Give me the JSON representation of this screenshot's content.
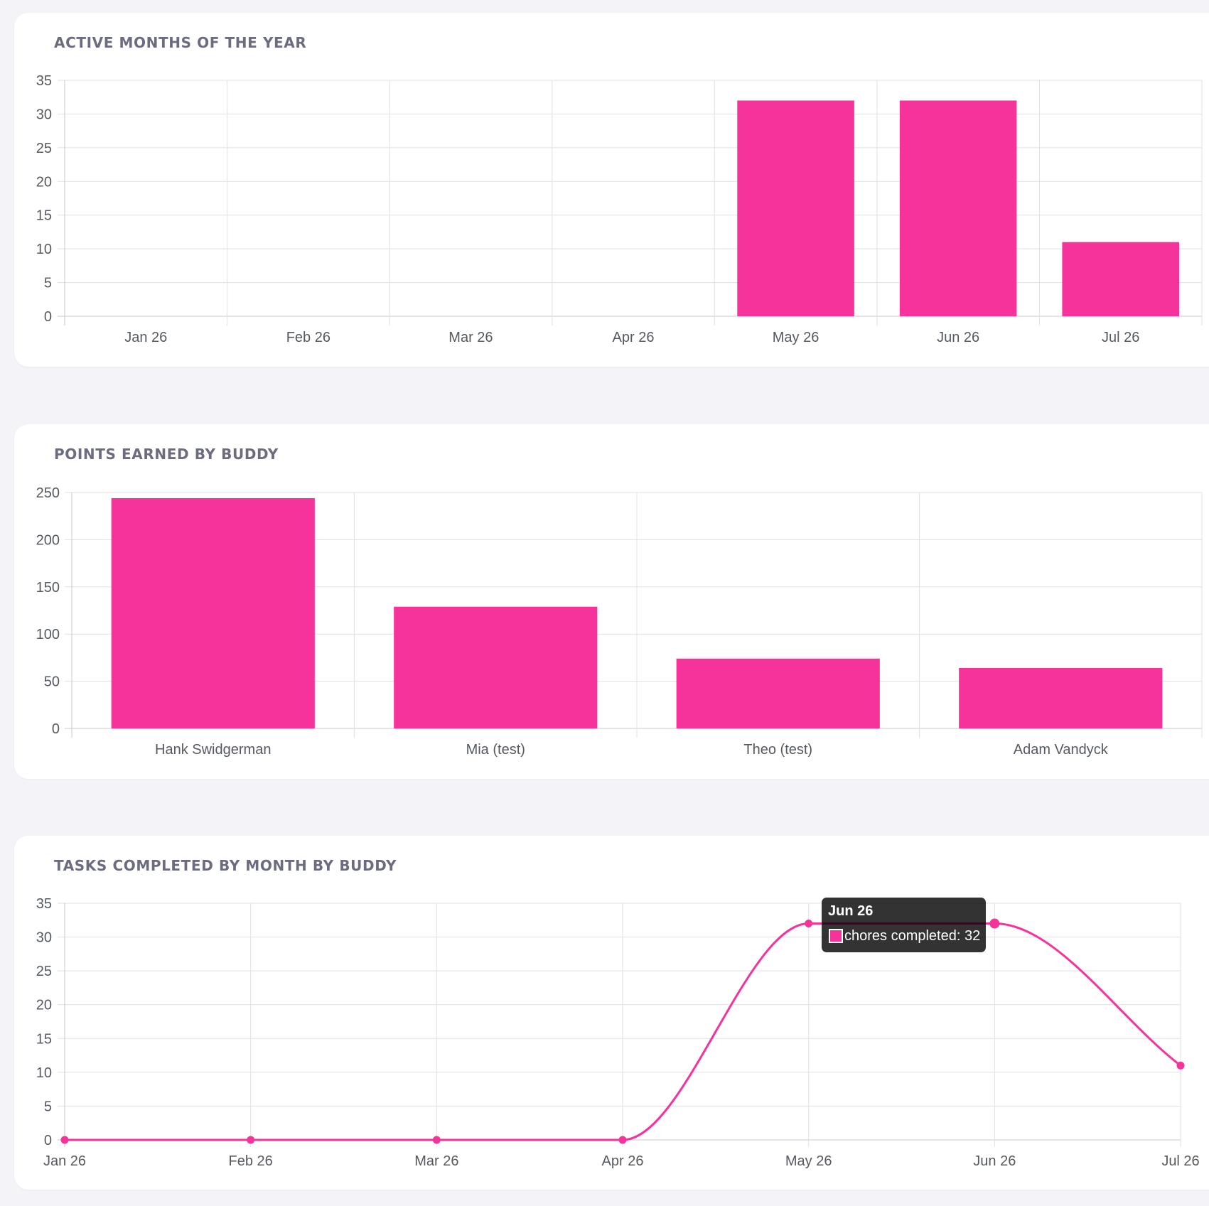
{
  "theme": {
    "accent": "#f5339b",
    "grid": "#e1e1e1",
    "axis_text": "#555a60",
    "title_text": "#6b6c7f"
  },
  "chart_data": [
    {
      "type": "bar",
      "title": "ACTIVE MONTHS OF THE YEAR",
      "categories": [
        "Jan 26",
        "Feb 26",
        "Mar 26",
        "Apr 26",
        "May 26",
        "Jun 26",
        "Jul 26"
      ],
      "values": [
        0,
        0,
        0,
        0,
        32,
        32,
        11
      ],
      "ylim": [
        0,
        35
      ],
      "yticks": [
        "0",
        "5",
        "10",
        "15",
        "20",
        "25",
        "30",
        "35"
      ],
      "grid": true,
      "color": "#f5339b"
    },
    {
      "type": "bar",
      "title": "POINTS EARNED BY BUDDY",
      "categories": [
        "Hank Swidgerman",
        "Mia (test)",
        "Theo (test)",
        "Adam Vandyck"
      ],
      "values": [
        244,
        129,
        74,
        64
      ],
      "ylim": [
        0,
        250
      ],
      "yticks": [
        "0",
        "50",
        "100",
        "150",
        "200",
        "250"
      ],
      "grid": true,
      "color": "#f5339b"
    },
    {
      "type": "line",
      "title": "TASKS COMPLETED BY MONTH BY BUDDY",
      "x": [
        "Jan 26",
        "Feb 26",
        "Mar 26",
        "Apr 26",
        "May 26",
        "Jun 26",
        "Jul 26"
      ],
      "series": [
        {
          "name": "chores completed",
          "values": [
            0,
            0,
            0,
            0,
            32,
            32,
            11
          ],
          "color": "#f5339b"
        }
      ],
      "ylim": [
        0,
        35
      ],
      "yticks": [
        "0",
        "5",
        "10",
        "15",
        "20",
        "25",
        "30",
        "35"
      ],
      "grid": true,
      "tooltip": {
        "title": "Jun 26",
        "label": "chores completed: 32"
      }
    }
  ]
}
